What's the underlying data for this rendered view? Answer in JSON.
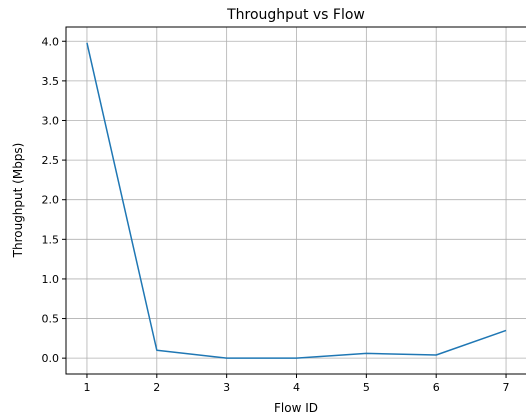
{
  "chart_data": {
    "type": "line",
    "title": "Throughput vs Flow",
    "xlabel": "Flow ID",
    "ylabel": "Throughput (Mbps)",
    "x": [
      1,
      2,
      3,
      4,
      5,
      6,
      7
    ],
    "series": [
      {
        "values": [
          3.98,
          0.1,
          0.0,
          0.0,
          0.06,
          0.04,
          0.35
        ],
        "color": "#1f77b4"
      }
    ],
    "xticks": [
      "1",
      "2",
      "3",
      "4",
      "5",
      "6",
      "7"
    ],
    "yticks": [
      "0.0",
      "0.5",
      "1.0",
      "1.5",
      "2.0",
      "2.5",
      "3.0",
      "3.5",
      "4.0"
    ],
    "xlim": [
      0.7,
      7.3
    ],
    "ylim": [
      -0.2,
      4.18
    ],
    "grid": true,
    "grid_color": "#b0b0b0",
    "line_color": "#1f77b4"
  }
}
